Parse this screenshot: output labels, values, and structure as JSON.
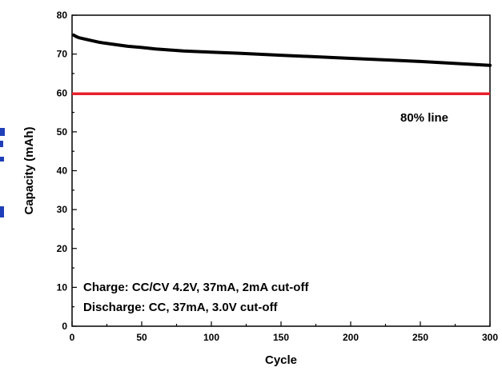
{
  "chart_data": {
    "type": "line",
    "xlabel": "Cycle",
    "ylabel": "Capacity (mAh)",
    "xlim": [
      0,
      300
    ],
    "ylim": [
      0,
      80
    ],
    "x_ticks": [
      0,
      50,
      100,
      150,
      200,
      250,
      300
    ],
    "y_ticks": [
      0,
      10,
      20,
      30,
      40,
      50,
      60,
      70,
      80
    ],
    "grid": false,
    "series": [
      {
        "color": "#000000",
        "x": [
          1,
          3,
          5,
          10,
          20,
          30,
          40,
          50,
          60,
          80,
          100,
          120,
          150,
          200,
          250,
          300
        ],
        "y": [
          74.9,
          74.5,
          74.2,
          73.8,
          73.0,
          72.5,
          72.0,
          71.7,
          71.3,
          70.8,
          70.5,
          70.2,
          69.7,
          68.9,
          68.1,
          67.1
        ]
      }
    ],
    "reference_line": {
      "y": 59.8,
      "color": "#e8202a",
      "label": "80% line"
    },
    "annotations": [
      "Charge: CC/CV 4.2V, 37mA, 2mA cut-off",
      "Discharge: CC, 37mA, 3.0V cut-off"
    ],
    "cropped_left_label_color": "#1f3fb8"
  }
}
